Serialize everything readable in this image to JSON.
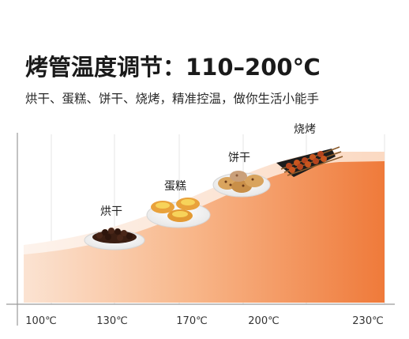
{
  "header": {
    "title": "烤管温度调节：110–200℃",
    "subtitle": "烘干、蛋糕、饼干、烧烤，精准控温，做你生活小能手"
  },
  "axis": {
    "ticks": [
      "100℃",
      "130℃",
      "170℃",
      "200℃",
      "230℃"
    ]
  },
  "stages": [
    {
      "label": "烘干",
      "food": "dried-berries"
    },
    {
      "label": "蛋糕",
      "food": "egg-tarts"
    },
    {
      "label": "饼干",
      "food": "cookies"
    },
    {
      "label": "烧烤",
      "food": "skewers"
    }
  ],
  "colors": {
    "gradient_light": "#fbe3d2",
    "gradient_mid": "#f6a36b",
    "gradient_dark": "#ef7a3a",
    "band_light": "#fdf0e6",
    "grid": "#e6e6e6",
    "axis": "#9a9a9a"
  }
}
